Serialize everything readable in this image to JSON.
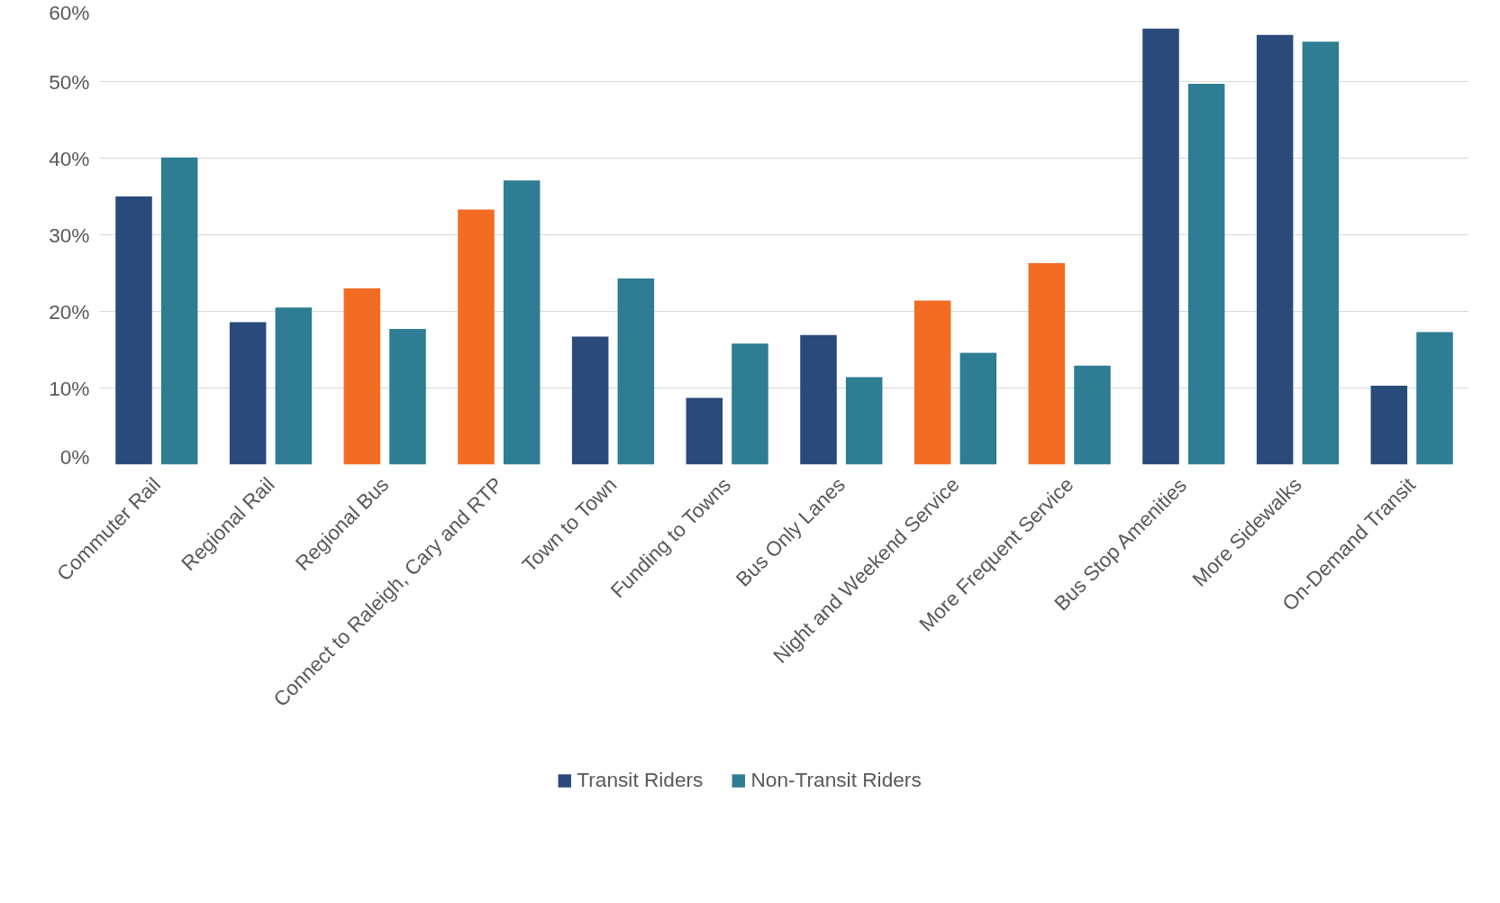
{
  "chart_data": {
    "type": "bar",
    "categories": [
      "Commuter Rail",
      "Regional Rail",
      "Regional Bus",
      "Connect to Raleigh, Cary and RTP",
      "Town to Town",
      "Funding to Towns",
      "Bus Only Lanes",
      "Night and Weekend Service",
      "More Frequent Service",
      "Bus Stop Amenities",
      "More Sidewalks",
      "On-Demand Transit"
    ],
    "series": [
      {
        "name": "Transit Riders",
        "color": "#2a4a7b",
        "colors": [
          "#2a4a7b",
          "#2a4a7b",
          "#f26c24",
          "#f26c24",
          "#2a4a7b",
          "#2a4a7b",
          "#2a4a7b",
          "#f26c24",
          "#f26c24",
          "#2a4a7b",
          "#2a4a7b",
          "#2a4a7b"
        ],
        "values": [
          35,
          18.6,
          23,
          33.3,
          16.7,
          8.7,
          16.9,
          21.4,
          26.3,
          56.9,
          56.1,
          10.3
        ]
      },
      {
        "name": "Non-Transit Riders",
        "color": "#2e7d93",
        "values": [
          40.1,
          20.5,
          17.7,
          37.1,
          24.3,
          15.8,
          11.4,
          14.6,
          12.9,
          49.7,
          55.2,
          17.3
        ]
      }
    ],
    "ylim": [
      0,
      60
    ],
    "yticks": [
      {
        "value": 0,
        "label": "0%"
      },
      {
        "value": 10,
        "label": "10%"
      },
      {
        "value": 20,
        "label": "20%"
      },
      {
        "value": 30,
        "label": "30%"
      },
      {
        "value": 40,
        "label": "40%"
      },
      {
        "value": 50,
        "label": "50%"
      },
      {
        "value": 60,
        "label": "60%"
      }
    ],
    "grid": "y",
    "legend": "bottom"
  }
}
